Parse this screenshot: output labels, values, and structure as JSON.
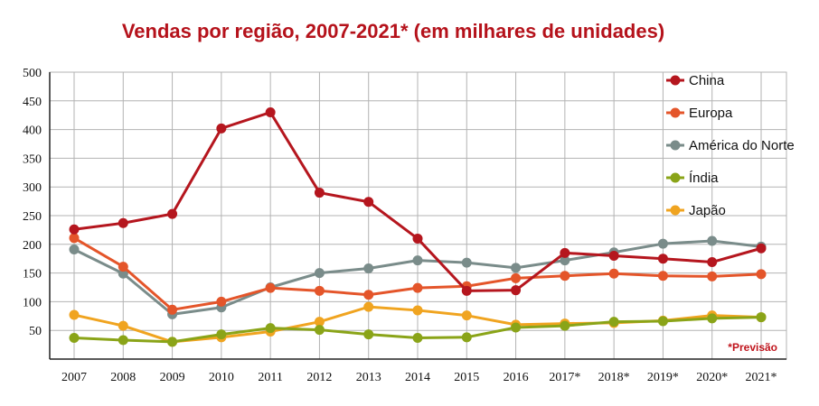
{
  "colors": {
    "title": "#b5121b",
    "note": "#c0141c",
    "grid": "#b3b3b3",
    "axis": "#222222"
  },
  "chart_data": {
    "type": "line",
    "title": "Vendas por região, 2007-2021* (em milhares de unidades)",
    "note": "*Previsão",
    "xlabel": "",
    "ylabel": "",
    "ylim": [
      0,
      500
    ],
    "yticks": [
      50,
      100,
      150,
      200,
      250,
      300,
      350,
      400,
      450,
      500
    ],
    "grid": true,
    "legend_position": "top-right",
    "categories": [
      "2007",
      "2008",
      "2009",
      "2010",
      "2011",
      "2012",
      "2013",
      "2014",
      "2015",
      "2016",
      "2017*",
      "2018*",
      "2019*",
      "2020*",
      "2021*"
    ],
    "series": [
      {
        "name": "China",
        "color": "#b5161e",
        "values": [
          226,
          237,
          253,
          402,
          430,
          290,
          274,
          210,
          119,
          120,
          185,
          180,
          175,
          169,
          193
        ]
      },
      {
        "name": "Europa",
        "color": "#e4552a",
        "values": [
          211,
          161,
          86,
          100,
          124,
          119,
          112,
          124,
          127,
          141,
          145,
          149,
          145,
          144,
          148
        ]
      },
      {
        "name": "América do Norte",
        "color": "#7a8c8a",
        "values": [
          191,
          149,
          78,
          90,
          125,
          150,
          158,
          172,
          168,
          159,
          172,
          186,
          201,
          206,
          196
        ]
      },
      {
        "name": "Índia",
        "color": "#8aa418",
        "values": [
          37,
          33,
          30,
          43,
          54,
          51,
          43,
          37,
          38,
          55,
          58,
          65,
          66,
          71,
          73
        ]
      },
      {
        "name": "Japão",
        "color": "#f0a420",
        "values": [
          77,
          58,
          30,
          38,
          48,
          65,
          91,
          85,
          76,
          60,
          62,
          63,
          67,
          76,
          73
        ]
      }
    ]
  }
}
